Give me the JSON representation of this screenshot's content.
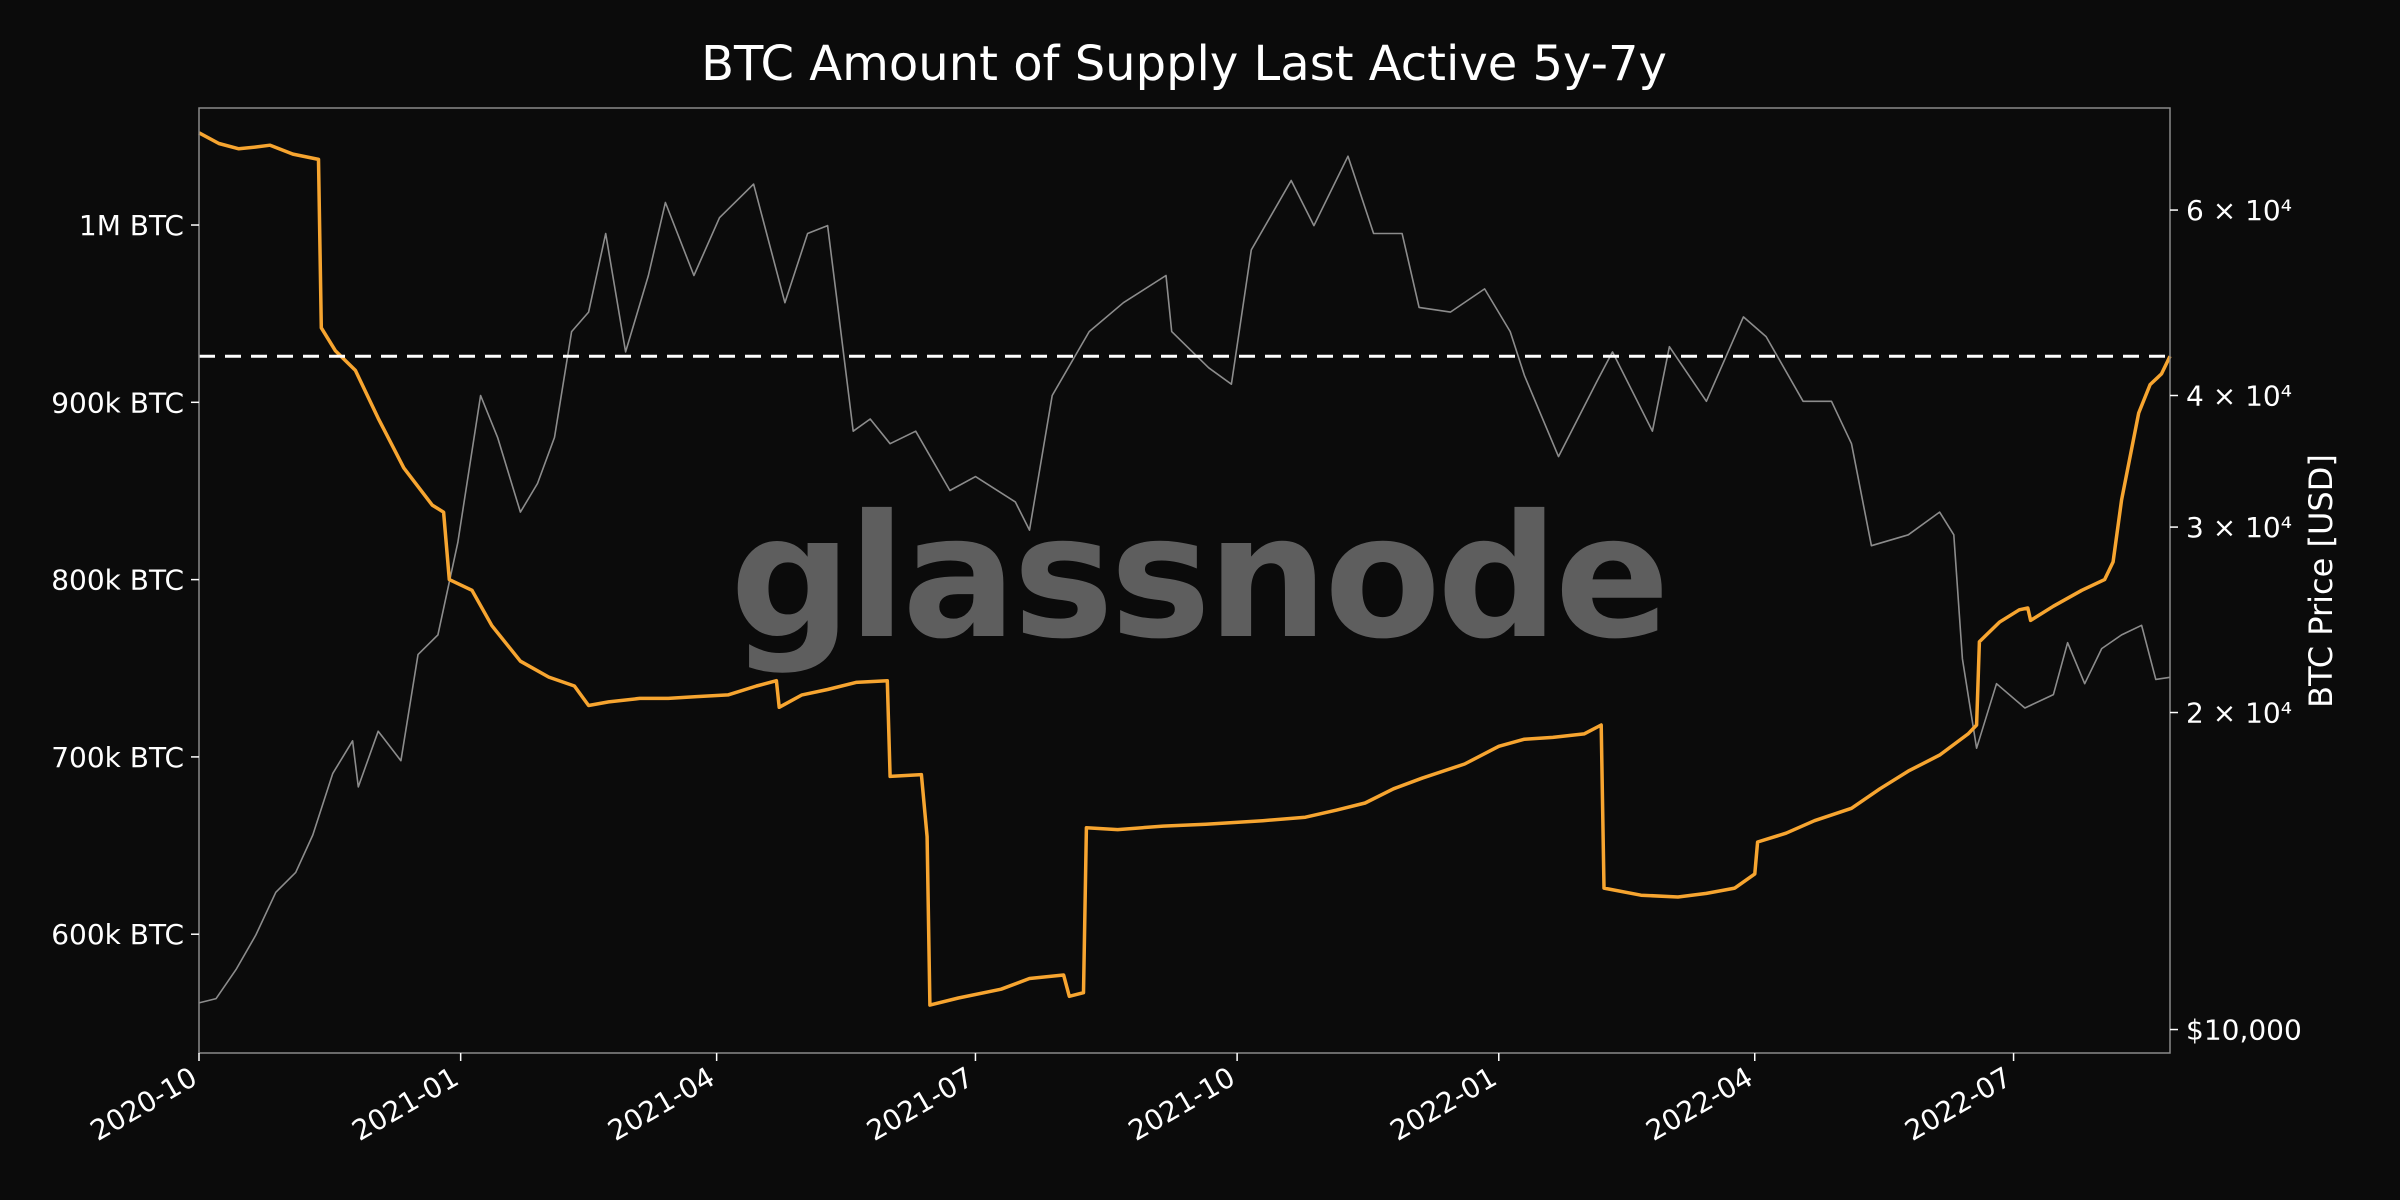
{
  "chart_data": {
    "type": "line",
    "title": "BTC Amount of Supply Last Active 5y-7y",
    "watermark": "glassnode",
    "x_axis": {
      "type": "date",
      "range": [
        "2020-10-01",
        "2022-08-25"
      ],
      "tick_labels": [
        "2020-10",
        "2021-01",
        "2021-04",
        "2021-07",
        "2021-10",
        "2022-01",
        "2022-04",
        "2022-07"
      ]
    },
    "y_left": {
      "unit": "BTC",
      "range": [
        533000,
        1066000
      ],
      "ticks": [
        {
          "value": 600000,
          "label": "600k BTC"
        },
        {
          "value": 700000,
          "label": "700k BTC"
        },
        {
          "value": 800000,
          "label": "800k BTC"
        },
        {
          "value": 900000,
          "label": "900k BTC"
        },
        {
          "value": 1000000,
          "label": "1M BTC"
        }
      ]
    },
    "y_right": {
      "label": "BTC Price [USD]",
      "scale": "log",
      "range": [
        9500,
        75000
      ],
      "ticks": [
        {
          "value": 10000,
          "label": "$10,000"
        },
        {
          "value": 20000,
          "label": "2 × 10⁴"
        },
        {
          "value": 30000,
          "label": "3 × 10⁴"
        },
        {
          "value": 40000,
          "label": "4 × 10⁴"
        },
        {
          "value": 60000,
          "label": "6 × 10⁴"
        }
      ]
    },
    "reference_line": {
      "value": 926000,
      "style": "dashed",
      "color": "#ffffff"
    },
    "series": [
      {
        "axis": "left",
        "color": "#f7a530",
        "points": [
          [
            "2020-10-01",
            1052000
          ],
          [
            "2020-10-08",
            1046000
          ],
          [
            "2020-10-15",
            1043000
          ],
          [
            "2020-10-21",
            1044000
          ],
          [
            "2020-10-26",
            1045000
          ],
          [
            "2020-11-03",
            1040000
          ],
          [
            "2020-11-12",
            1037000
          ],
          [
            "2020-11-13",
            942000
          ],
          [
            "2020-11-18",
            929000
          ],
          [
            "2020-11-25",
            918000
          ],
          [
            "2020-12-03",
            891000
          ],
          [
            "2020-12-12",
            863000
          ],
          [
            "2020-12-22",
            842000
          ],
          [
            "2020-12-26",
            838000
          ],
          [
            "2020-12-28",
            800000
          ],
          [
            "2021-01-05",
            794000
          ],
          [
            "2021-01-12",
            774000
          ],
          [
            "2021-01-22",
            754000
          ],
          [
            "2021-02-01",
            745000
          ],
          [
            "2021-02-10",
            740000
          ],
          [
            "2021-02-15",
            729000
          ],
          [
            "2021-02-22",
            731000
          ],
          [
            "2021-03-05",
            733000
          ],
          [
            "2021-03-15",
            733000
          ],
          [
            "2021-03-25",
            734000
          ],
          [
            "2021-04-05",
            735000
          ],
          [
            "2021-04-15",
            740000
          ],
          [
            "2021-04-22",
            743000
          ],
          [
            "2021-04-23",
            728000
          ],
          [
            "2021-05-01",
            735000
          ],
          [
            "2021-05-10",
            738000
          ],
          [
            "2021-05-20",
            742000
          ],
          [
            "2021-05-31",
            743000
          ],
          [
            "2021-06-01",
            689000
          ],
          [
            "2021-06-12",
            690000
          ],
          [
            "2021-06-14",
            655000
          ],
          [
            "2021-06-15",
            560000
          ],
          [
            "2021-06-25",
            564000
          ],
          [
            "2021-07-10",
            569000
          ],
          [
            "2021-07-20",
            575000
          ],
          [
            "2021-08-01",
            577000
          ],
          [
            "2021-08-03",
            565000
          ],
          [
            "2021-08-08",
            567000
          ],
          [
            "2021-08-09",
            660000
          ],
          [
            "2021-08-20",
            659000
          ],
          [
            "2021-09-05",
            661000
          ],
          [
            "2021-09-20",
            662000
          ],
          [
            "2021-10-10",
            664000
          ],
          [
            "2021-10-25",
            666000
          ],
          [
            "2021-11-05",
            670000
          ],
          [
            "2021-11-15",
            674000
          ],
          [
            "2021-11-25",
            682000
          ],
          [
            "2021-12-05",
            688000
          ],
          [
            "2021-12-20",
            696000
          ],
          [
            "2022-01-01",
            706000
          ],
          [
            "2022-01-10",
            710000
          ],
          [
            "2022-01-20",
            711000
          ],
          [
            "2022-01-31",
            713000
          ],
          [
            "2022-02-06",
            718000
          ],
          [
            "2022-02-07",
            626000
          ],
          [
            "2022-02-20",
            622000
          ],
          [
            "2022-03-05",
            621000
          ],
          [
            "2022-03-15",
            623000
          ],
          [
            "2022-03-25",
            626000
          ],
          [
            "2022-04-01",
            634000
          ],
          [
            "2022-04-02",
            652000
          ],
          [
            "2022-04-12",
            657000
          ],
          [
            "2022-04-22",
            664000
          ],
          [
            "2022-05-05",
            671000
          ],
          [
            "2022-05-15",
            682000
          ],
          [
            "2022-05-25",
            692000
          ],
          [
            "2022-06-05",
            701000
          ],
          [
            "2022-06-15",
            713000
          ],
          [
            "2022-06-18",
            718000
          ],
          [
            "2022-06-19",
            765000
          ],
          [
            "2022-06-26",
            776000
          ],
          [
            "2022-07-03",
            783000
          ],
          [
            "2022-07-06",
            784000
          ],
          [
            "2022-07-07",
            777000
          ],
          [
            "2022-07-15",
            785000
          ],
          [
            "2022-07-25",
            794000
          ],
          [
            "2022-08-02",
            800000
          ],
          [
            "2022-08-05",
            810000
          ],
          [
            "2022-08-08",
            845000
          ],
          [
            "2022-08-14",
            894000
          ],
          [
            "2022-08-18",
            910000
          ],
          [
            "2022-08-22",
            916000
          ],
          [
            "2022-08-25",
            926000
          ]
        ]
      },
      {
        "axis": "right",
        "color": "#8c8c8c",
        "points": [
          [
            "2020-10-01",
            10600
          ],
          [
            "2020-10-07",
            10700
          ],
          [
            "2020-10-14",
            11400
          ],
          [
            "2020-10-21",
            12300
          ],
          [
            "2020-10-28",
            13500
          ],
          [
            "2020-11-04",
            14100
          ],
          [
            "2020-11-10",
            15300
          ],
          [
            "2020-11-17",
            17500
          ],
          [
            "2020-11-24",
            18800
          ],
          [
            "2020-11-26",
            17000
          ],
          [
            "2020-12-03",
            19200
          ],
          [
            "2020-12-11",
            18000
          ],
          [
            "2020-12-17",
            22700
          ],
          [
            "2020-12-24",
            23700
          ],
          [
            "2020-12-31",
            29000
          ],
          [
            "2021-01-08",
            40000
          ],
          [
            "2021-01-14",
            36500
          ],
          [
            "2021-01-22",
            31000
          ],
          [
            "2021-01-28",
            33000
          ],
          [
            "2021-02-03",
            36500
          ],
          [
            "2021-02-09",
            46000
          ],
          [
            "2021-02-15",
            48000
          ],
          [
            "2021-02-21",
            57000
          ],
          [
            "2021-02-28",
            44000
          ],
          [
            "2021-03-08",
            52000
          ],
          [
            "2021-03-14",
            61000
          ],
          [
            "2021-03-24",
            52000
          ],
          [
            "2021-04-02",
            59000
          ],
          [
            "2021-04-14",
            63500
          ],
          [
            "2021-04-25",
            49000
          ],
          [
            "2021-05-03",
            57000
          ],
          [
            "2021-05-10",
            58000
          ],
          [
            "2021-05-13",
            50000
          ],
          [
            "2021-05-19",
            37000
          ],
          [
            "2021-05-25",
            38000
          ],
          [
            "2021-06-01",
            36000
          ],
          [
            "2021-06-10",
            37000
          ],
          [
            "2021-06-22",
            32500
          ],
          [
            "2021-07-01",
            33500
          ],
          [
            "2021-07-15",
            31700
          ],
          [
            "2021-07-20",
            29800
          ],
          [
            "2021-07-28",
            40000
          ],
          [
            "2021-08-10",
            46000
          ],
          [
            "2021-08-22",
            49000
          ],
          [
            "2021-09-06",
            52000
          ],
          [
            "2021-09-08",
            46000
          ],
          [
            "2021-09-21",
            42500
          ],
          [
            "2021-09-29",
            41000
          ],
          [
            "2021-10-06",
            55000
          ],
          [
            "2021-10-20",
            64000
          ],
          [
            "2021-10-28",
            58000
          ],
          [
            "2021-11-09",
            67500
          ],
          [
            "2021-11-18",
            57000
          ],
          [
            "2021-11-28",
            57000
          ],
          [
            "2021-12-04",
            48500
          ],
          [
            "2021-12-15",
            48000
          ],
          [
            "2021-12-27",
            50500
          ],
          [
            "2022-01-05",
            46000
          ],
          [
            "2022-01-10",
            41800
          ],
          [
            "2022-01-22",
            35000
          ],
          [
            "2022-02-05",
            41500
          ],
          [
            "2022-02-10",
            44000
          ],
          [
            "2022-02-24",
            37000
          ],
          [
            "2022-03-02",
            44500
          ],
          [
            "2022-03-15",
            39500
          ],
          [
            "2022-03-28",
            47500
          ],
          [
            "2022-04-05",
            45500
          ],
          [
            "2022-04-18",
            39500
          ],
          [
            "2022-04-28",
            39500
          ],
          [
            "2022-05-05",
            36000
          ],
          [
            "2022-05-12",
            28800
          ],
          [
            "2022-05-25",
            29500
          ],
          [
            "2022-06-05",
            31000
          ],
          [
            "2022-06-10",
            29500
          ],
          [
            "2022-06-13",
            22500
          ],
          [
            "2022-06-18",
            18500
          ],
          [
            "2022-06-25",
            21300
          ],
          [
            "2022-07-05",
            20200
          ],
          [
            "2022-07-15",
            20800
          ],
          [
            "2022-07-20",
            23300
          ],
          [
            "2022-07-26",
            21300
          ],
          [
            "2022-08-01",
            23000
          ],
          [
            "2022-08-08",
            23700
          ],
          [
            "2022-08-15",
            24200
          ],
          [
            "2022-08-20",
            21500
          ],
          [
            "2022-08-25",
            21600
          ]
        ]
      }
    ]
  }
}
